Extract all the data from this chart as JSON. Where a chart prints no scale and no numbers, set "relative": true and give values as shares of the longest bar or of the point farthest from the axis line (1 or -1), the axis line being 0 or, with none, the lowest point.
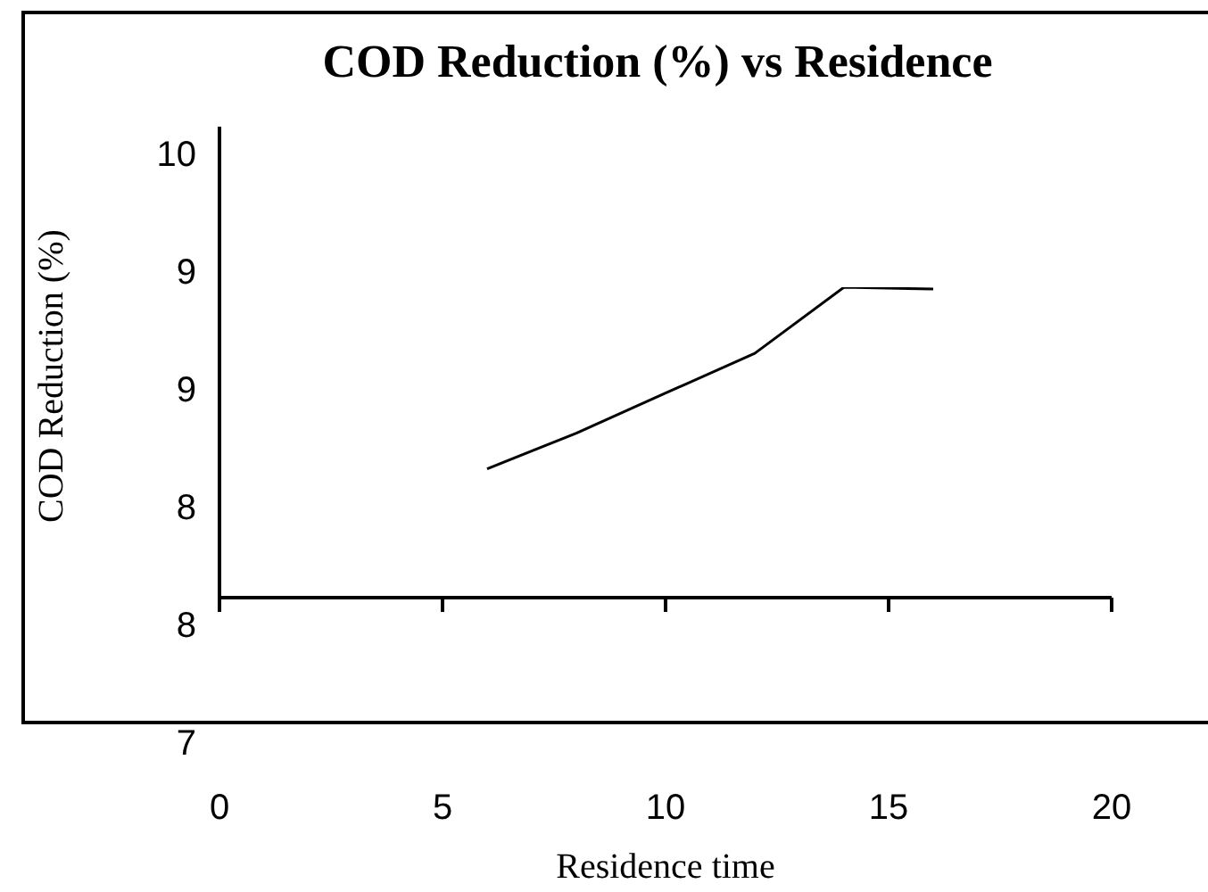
{
  "chart_data": {
    "type": "line",
    "title": "COD Reduction (%) vs Residence",
    "xlabel": "Residence time",
    "ylabel": "COD Reduction (%)",
    "x": [
      6,
      8,
      10,
      12,
      14,
      16
    ],
    "series": [
      {
        "color": "#000000",
        "values": [
          0.415,
          0.53,
          0.659,
          0.787,
          1,
          0.994
        ]
      }
    ],
    "relative": true,
    "annotations": [
      "10",
      "9",
      "9",
      "8",
      "8",
      "7"
    ],
    "xlim": [
      0,
      20
    ],
    "xticks": [
      0,
      5,
      10,
      15,
      20
    ],
    "grid": false,
    "legend": false,
    "marker": "none",
    "line_style": "solid"
  }
}
